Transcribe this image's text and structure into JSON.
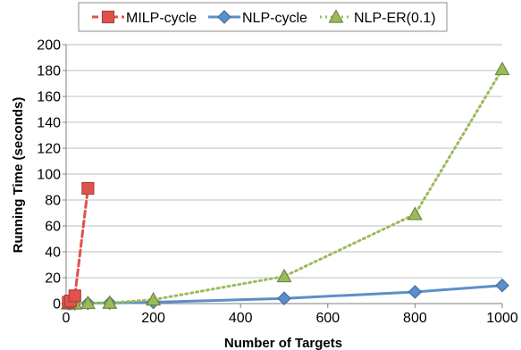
{
  "chart_data": {
    "type": "line",
    "xlabel": "Number of Targets",
    "ylabel": "Running Time (seconds)",
    "xlim": [
      0,
      1000
    ],
    "ylim": [
      0,
      200
    ],
    "xticks": [
      0,
      200,
      400,
      600,
      800,
      1000
    ],
    "yticks": [
      0,
      20,
      40,
      60,
      80,
      100,
      120,
      140,
      160,
      180,
      200
    ],
    "grid": "horizontal",
    "legend_position": "top",
    "series": [
      {
        "name": "MILP-cycle",
        "color": "#e0524d",
        "marker": "square",
        "line_style": "dashed",
        "x": [
          5,
          10,
          20,
          50
        ],
        "y": [
          1,
          2,
          6,
          89
        ]
      },
      {
        "name": "NLP-cycle",
        "color": "#5b8fc9",
        "marker": "diamond",
        "line_style": "solid",
        "x": [
          5,
          10,
          20,
          50,
          100,
          200,
          500,
          800,
          1000
        ],
        "y": [
          0,
          0,
          0,
          0.3,
          0.5,
          1,
          4,
          9,
          14
        ]
      },
      {
        "name": "NLP-ER(0.1)",
        "color": "#9bbb59",
        "marker": "triangle",
        "line_style": "dotted",
        "x": [
          5,
          10,
          20,
          50,
          100,
          200,
          500,
          800,
          1000
        ],
        "y": [
          0,
          0,
          0,
          0.3,
          0.5,
          3,
          21,
          69,
          181
        ]
      }
    ]
  }
}
